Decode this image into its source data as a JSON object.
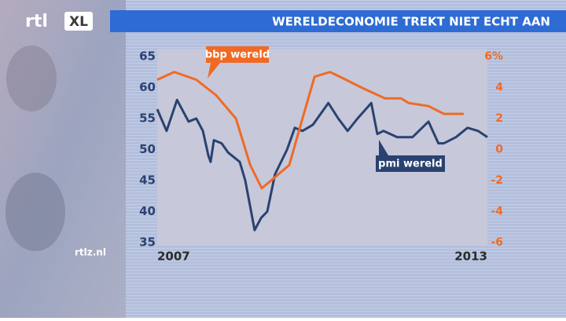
{
  "logo": "rtl",
  "logo_badge": "XL",
  "footer": "rtlz.nl",
  "chart_data": {
    "type": "line",
    "title": "WERELDECONOMIE TREKT NIET ECHT AAN",
    "xlim": [
      2007,
      2013
    ],
    "xticks": [
      2007,
      2013
    ],
    "ylim": [
      35,
      65
    ],
    "yticks": [
      35,
      40,
      45,
      50,
      55,
      60,
      65
    ],
    "y2lim": [
      -6,
      6
    ],
    "y2ticks": [
      -6,
      -4,
      -2,
      0,
      2,
      4,
      {
        "value": 6,
        "label": "6%"
      }
    ],
    "series": [
      {
        "name": "pmi wereld",
        "color": "#2a4270",
        "axis": "y",
        "x": [
          2007.0,
          2007.17,
          2007.36,
          2007.57,
          2007.71,
          2007.83,
          2007.93,
          2007.97,
          2008.03,
          2008.17,
          2008.29,
          2008.5,
          2008.6,
          2008.77,
          2008.89,
          2009.0,
          2009.14,
          2009.36,
          2009.5,
          2009.64,
          2009.83,
          2010.11,
          2010.29,
          2010.46,
          2010.64,
          2010.89,
          2011.0,
          2011.11,
          2011.36,
          2011.64,
          2011.93,
          2012.11,
          2012.21,
          2012.43,
          2012.64,
          2012.83,
          2013.0
        ],
        "values": [
          56.5,
          53,
          58,
          54.5,
          55,
          53,
          49,
          48,
          51.5,
          51,
          49.5,
          48,
          45,
          37,
          39,
          40,
          46,
          50,
          53.5,
          53,
          54,
          57.5,
          55,
          53,
          55,
          57.5,
          52.5,
          53,
          52,
          52,
          54.5,
          51,
          51,
          52,
          53.5,
          53,
          52
        ]
      },
      {
        "name": "bbp wereld",
        "color": "#f06a25",
        "axis": "y2",
        "x": [
          2007.0,
          2007.31,
          2007.71,
          2008.07,
          2008.43,
          2008.69,
          2008.9,
          2009.07,
          2009.4,
          2009.64,
          2009.86,
          2010.14,
          2010.43,
          2010.71,
          2011.14,
          2011.43,
          2011.57,
          2011.93,
          2012.21,
          2012.57
        ],
        "values": [
          4.5,
          5,
          4.5,
          3.5,
          2,
          -1,
          -2.5,
          -2,
          -1,
          2,
          4.7,
          5,
          4.5,
          4,
          3.3,
          3.3,
          3,
          2.8,
          2.3,
          2.3
        ]
      }
    ]
  }
}
